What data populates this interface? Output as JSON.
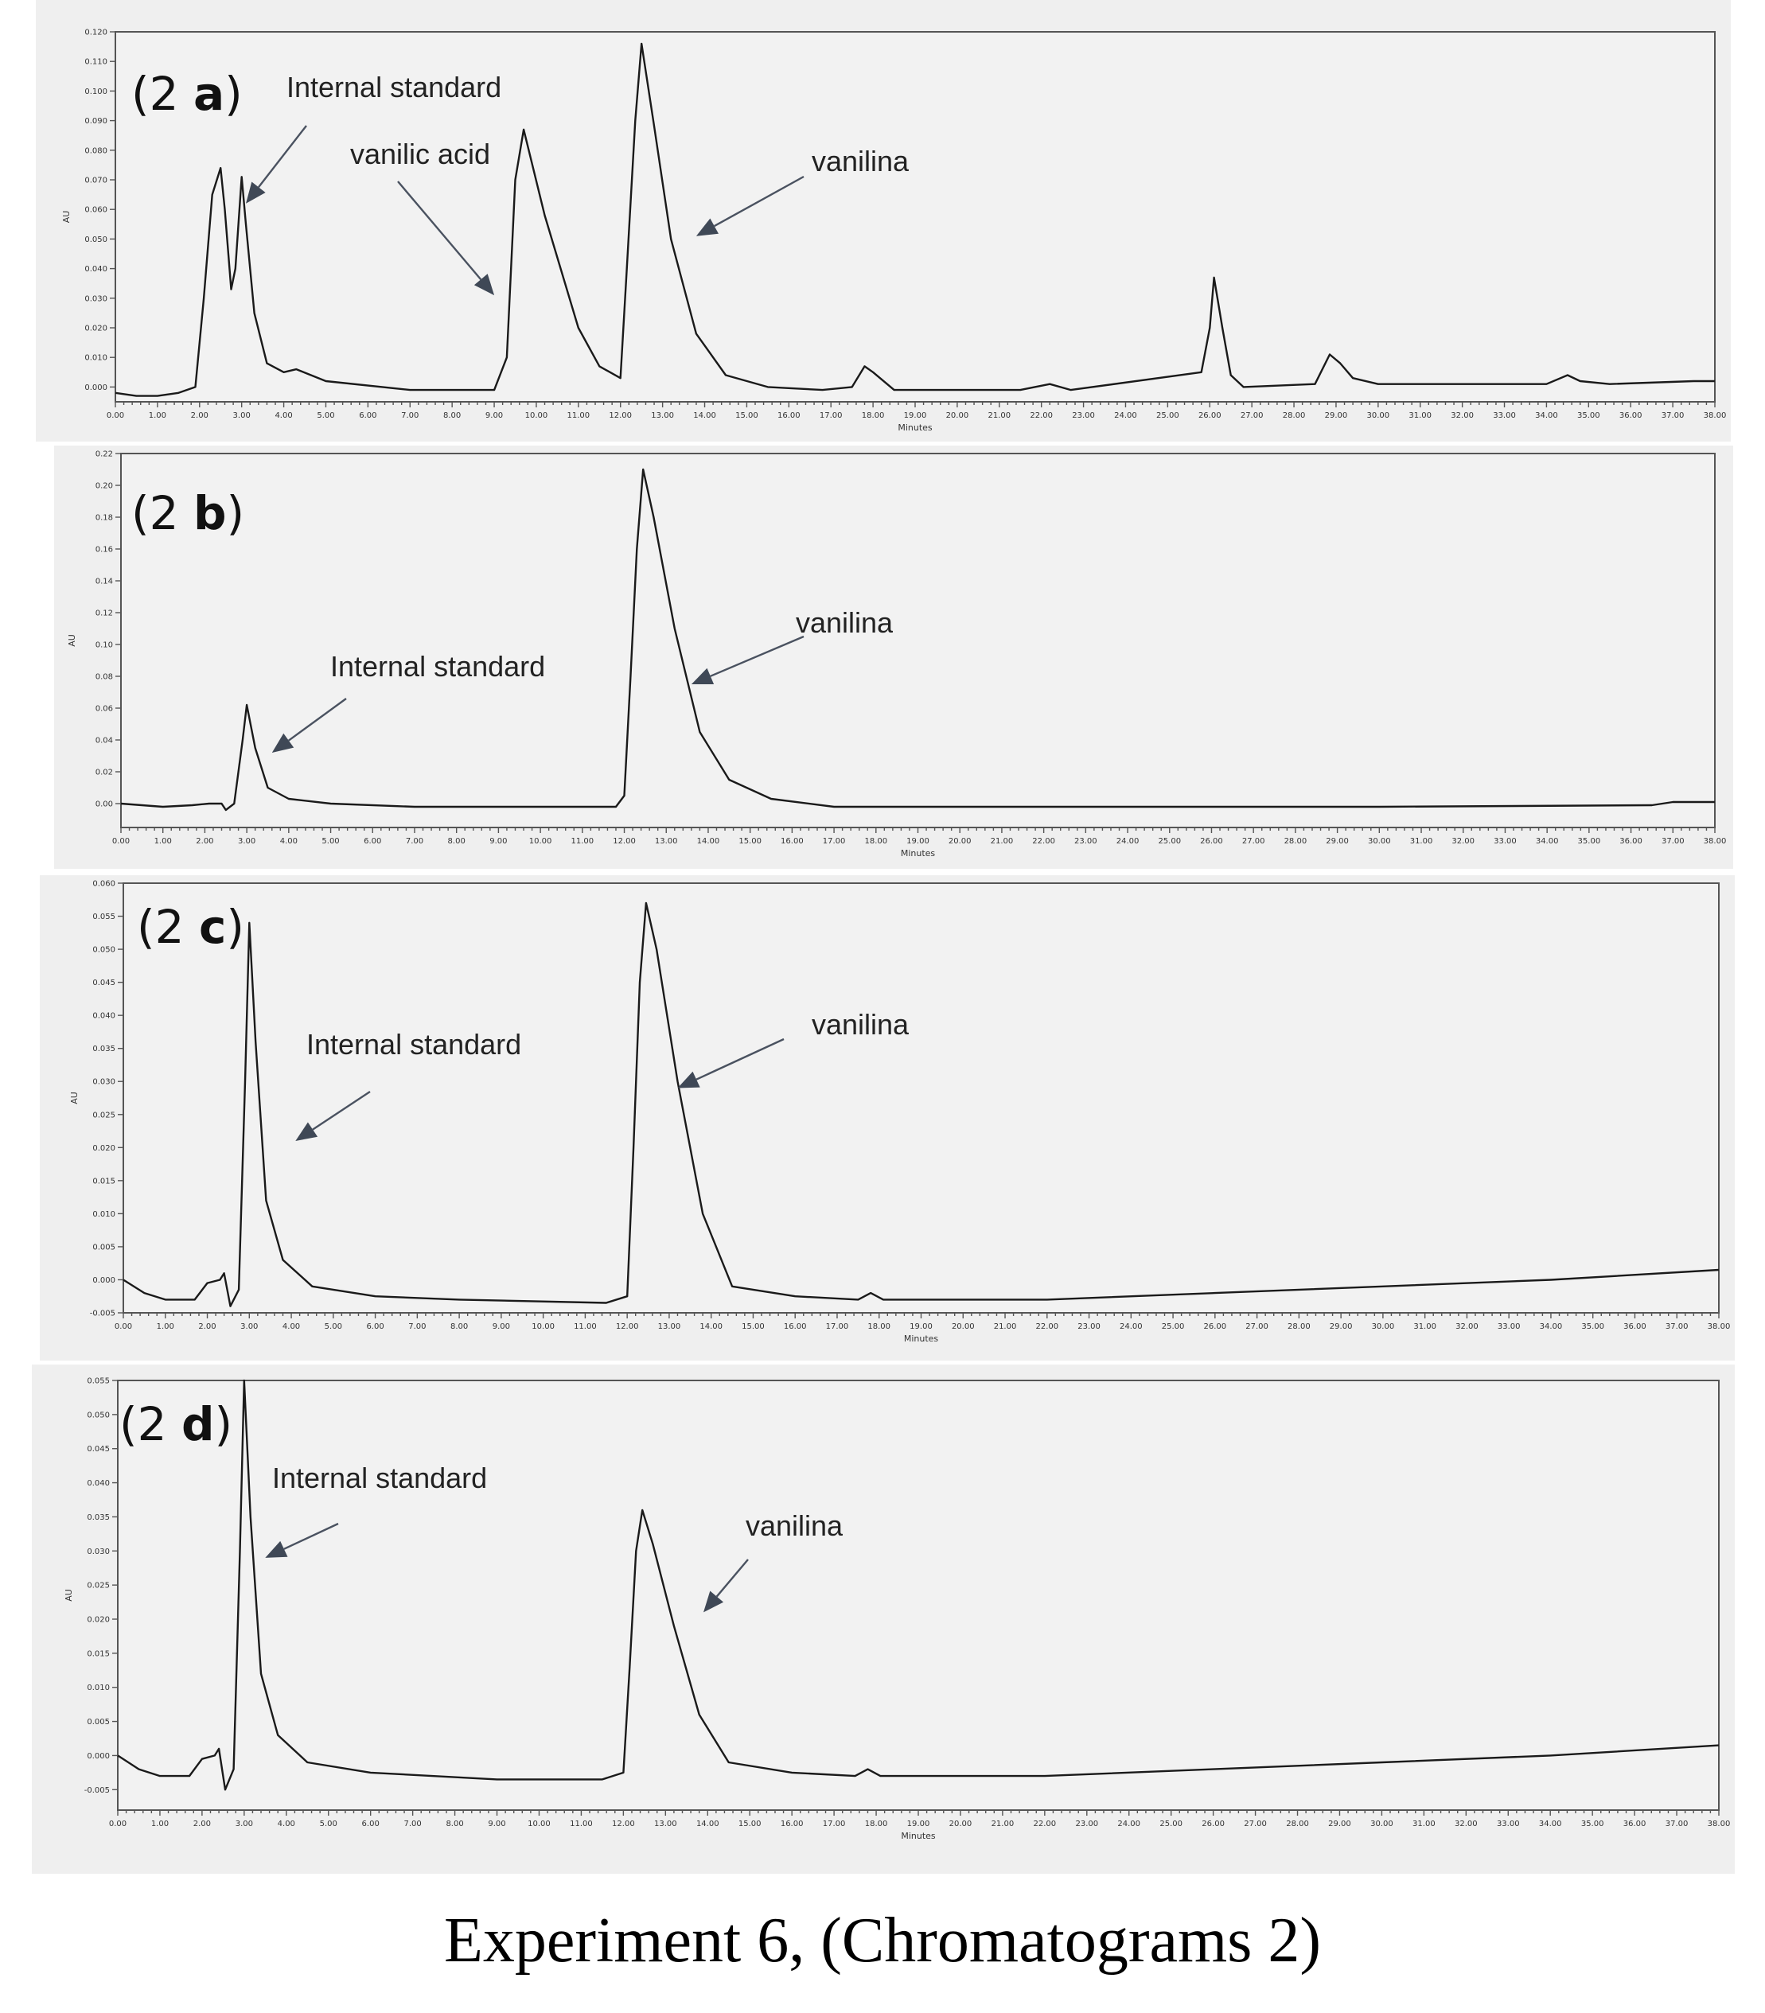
{
  "caption": "Experiment 6, (Chromatograms 2)",
  "colors": {
    "trace": "#1a1a1a",
    "panel_background": "#efefef",
    "plot_background": "#f2f2f2",
    "arrow": "#4a5260"
  },
  "chart_data": [
    {
      "id": "2a",
      "type": "line",
      "panel_label": {
        "prefix": "(2 ",
        "letter": "a",
        "suffix": ")"
      },
      "xlabel": "Minutes",
      "ylabel": "AU",
      "xlim": [
        0,
        38
      ],
      "ylim": [
        -0.005,
        0.12
      ],
      "x_ticks": [
        "0.00",
        "1.00",
        "2.00",
        "3.00",
        "4.00",
        "5.00",
        "6.00",
        "7.00",
        "8.00",
        "9.00",
        "10.00",
        "11.00",
        "12.00",
        "13.00",
        "14.00",
        "15.00",
        "16.00",
        "17.00",
        "18.00",
        "19.00",
        "20.00",
        "21.00",
        "22.00",
        "23.00",
        "24.00",
        "25.00",
        "26.00",
        "27.00",
        "28.00",
        "29.00",
        "30.00",
        "31.00",
        "32.00",
        "33.00",
        "34.00",
        "35.00",
        "36.00",
        "37.00",
        "38.00"
      ],
      "y_ticks": [
        "0.000",
        "0.010",
        "0.020",
        "0.030",
        "0.040",
        "0.050",
        "0.060",
        "0.070",
        "0.080",
        "0.090",
        "0.100",
        "0.110",
        "0.120"
      ],
      "series": [
        {
          "x": [
            0,
            0.5,
            1.0,
            1.5,
            1.9,
            2.1,
            2.3,
            2.5,
            2.6,
            2.75,
            2.85,
            3.0,
            3.1,
            3.3,
            3.6,
            4.0,
            4.3,
            5.0,
            7.0,
            9.0,
            9.3,
            9.5,
            9.7,
            10.2,
            11.0,
            11.5,
            12.0,
            12.15,
            12.35,
            12.5,
            12.8,
            13.2,
            13.8,
            14.5,
            15.5,
            16.8,
            17.5,
            17.8,
            18.0,
            18.5,
            20.5,
            21.5,
            22.2,
            22.7,
            25.8,
            26.0,
            26.1,
            26.3,
            26.5,
            26.8,
            28.5,
            28.85,
            29.1,
            29.4,
            30.0,
            34.0,
            34.5,
            34.8,
            35.5,
            37.5,
            38.0
          ],
          "y": [
            -0.002,
            -0.003,
            -0.003,
            -0.002,
            0.0,
            0.03,
            0.065,
            0.074,
            0.06,
            0.033,
            0.04,
            0.071,
            0.055,
            0.025,
            0.008,
            0.005,
            0.006,
            0.002,
            -0.001,
            -0.001,
            0.01,
            0.07,
            0.087,
            0.058,
            0.02,
            0.007,
            0.003,
            0.04,
            0.09,
            0.116,
            0.088,
            0.05,
            0.018,
            0.004,
            0.0,
            -0.001,
            0.0,
            0.007,
            0.005,
            -0.001,
            -0.001,
            -0.001,
            0.001,
            -0.001,
            0.005,
            0.02,
            0.037,
            0.02,
            0.004,
            0.0,
            0.001,
            0.011,
            0.008,
            0.003,
            0.001,
            0.001,
            0.004,
            0.002,
            0.001,
            0.002,
            0.002
          ]
        }
      ],
      "annotations": [
        {
          "text": "Internal standard",
          "x": 3.1,
          "y": 0.062
        },
        {
          "text": "vanilic acid",
          "x": 9.0,
          "y": 0.031
        },
        {
          "text": "vanilina",
          "x": 13.8,
          "y": 0.051
        }
      ]
    },
    {
      "id": "2b",
      "type": "line",
      "panel_label": {
        "prefix": "(2 ",
        "letter": "b",
        "suffix": ")"
      },
      "xlabel": "Minutes",
      "ylabel": "AU",
      "xlim": [
        0,
        38
      ],
      "ylim": [
        -0.015,
        0.22
      ],
      "x_ticks": [
        "0.00",
        "1.00",
        "2.00",
        "3.00",
        "4.00",
        "5.00",
        "6.00",
        "7.00",
        "8.00",
        "9.00",
        "10.00",
        "11.00",
        "12.00",
        "13.00",
        "14.00",
        "15.00",
        "16.00",
        "17.00",
        "18.00",
        "19.00",
        "20.00",
        "21.00",
        "22.00",
        "23.00",
        "24.00",
        "25.00",
        "26.00",
        "27.00",
        "28.00",
        "29.00",
        "30.00",
        "31.00",
        "32.00",
        "33.00",
        "34.00",
        "35.00",
        "36.00",
        "37.00",
        "38.00"
      ],
      "y_ticks": [
        "0.00",
        "0.02",
        "0.04",
        "0.06",
        "0.08",
        "0.10",
        "0.12",
        "0.14",
        "0.16",
        "0.18",
        "0.20",
        "0.22"
      ],
      "series": [
        {
          "x": [
            0,
            1.0,
            1.7,
            2.1,
            2.4,
            2.5,
            2.7,
            2.9,
            3.0,
            3.2,
            3.5,
            4.0,
            5.0,
            7.0,
            11.0,
            11.8,
            12.0,
            12.15,
            12.3,
            12.45,
            12.7,
            13.2,
            13.8,
            14.5,
            15.5,
            17.0,
            22.0,
            30.0,
            36.5,
            37.0,
            38.0
          ],
          "y": [
            0.0,
            -0.002,
            -0.001,
            0.0,
            0.0,
            -0.004,
            0.0,
            0.04,
            0.062,
            0.035,
            0.01,
            0.003,
            0.0,
            -0.002,
            -0.002,
            -0.002,
            0.005,
            0.08,
            0.16,
            0.21,
            0.18,
            0.11,
            0.045,
            0.015,
            0.003,
            -0.002,
            -0.002,
            -0.002,
            -0.001,
            0.001,
            0.001
          ]
        }
      ],
      "annotations": [
        {
          "text": "Internal standard",
          "x": 3.6,
          "y": 0.032
        },
        {
          "text": "vanilina",
          "x": 13.6,
          "y": 0.075
        }
      ]
    },
    {
      "id": "2c",
      "type": "line",
      "panel_label": {
        "prefix": "(2 ",
        "letter": "c",
        "suffix": ")"
      },
      "xlabel": "Minutes",
      "ylabel": "AU",
      "xlim": [
        0,
        38
      ],
      "ylim": [
        -0.005,
        0.06
      ],
      "x_ticks": [
        "0.00",
        "1.00",
        "2.00",
        "3.00",
        "4.00",
        "5.00",
        "6.00",
        "7.00",
        "8.00",
        "9.00",
        "10.00",
        "11.00",
        "12.00",
        "13.00",
        "14.00",
        "15.00",
        "16.00",
        "17.00",
        "18.00",
        "19.00",
        "20.00",
        "21.00",
        "22.00",
        "23.00",
        "24.00",
        "25.00",
        "26.00",
        "27.00",
        "28.00",
        "29.00",
        "30.00",
        "31.00",
        "32.00",
        "33.00",
        "34.00",
        "35.00",
        "36.00",
        "37.00",
        "38.00"
      ],
      "y_ticks": [
        "-0.005",
        "0.000",
        "0.005",
        "0.010",
        "0.015",
        "0.020",
        "0.025",
        "0.030",
        "0.035",
        "0.040",
        "0.045",
        "0.050",
        "0.055",
        "0.060"
      ],
      "series": [
        {
          "x": [
            0,
            0.5,
            1.0,
            1.7,
            2.0,
            2.3,
            2.4,
            2.55,
            2.75,
            2.9,
            3.0,
            3.15,
            3.4,
            3.8,
            4.5,
            6.0,
            8.0,
            11.5,
            12.0,
            12.15,
            12.3,
            12.45,
            12.7,
            13.2,
            13.8,
            14.5,
            16.0,
            17.5,
            17.8,
            18.1,
            19.0,
            22.0,
            26.0,
            30.0,
            34.0,
            38.0
          ],
          "y": [
            0.0,
            -0.002,
            -0.003,
            -0.003,
            -0.0005,
            0.0,
            0.001,
            -0.004,
            -0.0015,
            0.03,
            0.054,
            0.036,
            0.012,
            0.003,
            -0.001,
            -0.0025,
            -0.003,
            -0.0035,
            -0.0025,
            0.02,
            0.045,
            0.057,
            0.05,
            0.03,
            0.01,
            -0.001,
            -0.0025,
            -0.003,
            -0.002,
            -0.003,
            -0.003,
            -0.003,
            -0.002,
            -0.001,
            0.0,
            0.0015
          ]
        }
      ],
      "annotations": [
        {
          "text": "Internal standard",
          "x": 4.1,
          "y": 0.021
        },
        {
          "text": "vanilina",
          "x": 13.2,
          "y": 0.029
        }
      ]
    },
    {
      "id": "2d",
      "type": "line",
      "panel_label": {
        "prefix": "(2 ",
        "letter": "d",
        "suffix": ")"
      },
      "xlabel": "Minutes",
      "ylabel": "AU",
      "xlim": [
        0,
        38
      ],
      "ylim": [
        -0.008,
        0.055
      ],
      "x_ticks": [
        "0.00",
        "1.00",
        "2.00",
        "3.00",
        "4.00",
        "5.00",
        "6.00",
        "7.00",
        "8.00",
        "9.00",
        "10.00",
        "11.00",
        "12.00",
        "13.00",
        "14.00",
        "15.00",
        "16.00",
        "17.00",
        "18.00",
        "19.00",
        "20.00",
        "21.00",
        "22.00",
        "23.00",
        "24.00",
        "25.00",
        "26.00",
        "27.00",
        "28.00",
        "29.00",
        "30.00",
        "31.00",
        "32.00",
        "33.00",
        "34.00",
        "35.00",
        "36.00",
        "37.00",
        "38.00"
      ],
      "y_ticks": [
        "-0.005",
        "0.000",
        "0.005",
        "0.010",
        "0.015",
        "0.020",
        "0.025",
        "0.030",
        "0.035",
        "0.040",
        "0.045",
        "0.050",
        "0.055"
      ],
      "series": [
        {
          "x": [
            0,
            0.5,
            1.0,
            1.7,
            2.0,
            2.3,
            2.4,
            2.55,
            2.75,
            2.9,
            3.0,
            3.15,
            3.4,
            3.8,
            4.5,
            6.0,
            9.0,
            11.5,
            12.0,
            12.15,
            12.3,
            12.45,
            12.7,
            13.2,
            13.8,
            14.5,
            16.0,
            17.5,
            17.8,
            18.1,
            19.0,
            22.0,
            26.0,
            30.0,
            34.0,
            38.0
          ],
          "y": [
            0.0,
            -0.002,
            -0.003,
            -0.003,
            -0.0005,
            0.0,
            0.001,
            -0.005,
            -0.002,
            0.03,
            0.055,
            0.035,
            0.012,
            0.003,
            -0.001,
            -0.0025,
            -0.0035,
            -0.0035,
            -0.0025,
            0.013,
            0.03,
            0.036,
            0.031,
            0.019,
            0.006,
            -0.001,
            -0.0025,
            -0.003,
            -0.002,
            -0.003,
            -0.003,
            -0.003,
            -0.002,
            -0.001,
            0.0,
            0.0015
          ]
        }
      ],
      "annotations": [
        {
          "text": "Internal standard",
          "x": 3.5,
          "y": 0.029
        },
        {
          "text": "vanilina",
          "x": 13.9,
          "y": 0.021
        }
      ]
    }
  ]
}
